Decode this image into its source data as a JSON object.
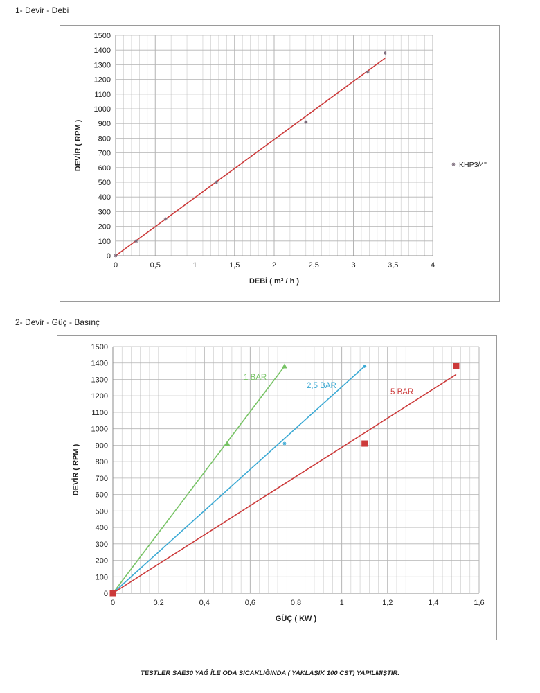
{
  "sections": {
    "chart1_title": "1- Devir - Debi",
    "chart2_title": "2- Devir - Güç - Basınç"
  },
  "footer": {
    "note": "TESTLER SAE30 YAĞ İLE ODA SICAKLIĞINDA ( YAKLAŞIK 100 CST) YAPILMIŞTIR."
  },
  "colors": {
    "grid": "#c8c8c8",
    "axis": "#8c8c8c",
    "khp_line": "#cc3a3a",
    "khp_marker": "#7a6a7a",
    "bar1": "#77c365",
    "bar25": "#3aa9d4",
    "bar5": "#cc3a3a"
  },
  "chart_data": [
    {
      "type": "scatter",
      "xlabel": "DEBİ ( m³ / h )",
      "ylabel": "DEVİR ( RPM )",
      "xlim": [
        0,
        4
      ],
      "ylim": [
        0,
        1500
      ],
      "x_ticks": [
        "0",
        "0,5",
        "1",
        "1,5",
        "2",
        "2,5",
        "3",
        "3,5",
        "4"
      ],
      "y_ticks": [
        "0",
        "100",
        "200",
        "300",
        "400",
        "500",
        "600",
        "700",
        "800",
        "900",
        "1000",
        "1100",
        "1200",
        "1300",
        "1400",
        "1500"
      ],
      "grid": true,
      "legend": "right",
      "series": [
        {
          "name": "KHP3/4\"",
          "marker": "star",
          "points": [
            [
              0,
              0
            ],
            [
              0.26,
              100
            ],
            [
              0.63,
              250
            ],
            [
              1.27,
              500
            ],
            [
              2.4,
              910
            ],
            [
              3.18,
              1250
            ],
            [
              3.4,
              1380
            ]
          ],
          "trendline": [
            [
              0,
              0
            ],
            [
              3.4,
              1345
            ]
          ]
        }
      ]
    },
    {
      "type": "scatter",
      "xlabel": "GÜÇ ( KW )",
      "ylabel": "DEVİR ( RPM )",
      "xlim": [
        0,
        1.6
      ],
      "ylim": [
        0,
        1500
      ],
      "x_ticks": [
        "0",
        "0,2",
        "0,4",
        "0,6",
        "0,8",
        "1",
        "1,2",
        "1,4",
        "1,6"
      ],
      "y_ticks": [
        "0",
        "100",
        "200",
        "300",
        "400",
        "500",
        "600",
        "700",
        "800",
        "900",
        "1000",
        "1100",
        "1200",
        "1300",
        "1400",
        "1500"
      ],
      "grid": true,
      "series": [
        {
          "name": "1 BAR",
          "color_key": "bar1",
          "marker": "triangle",
          "points": [
            [
              0,
              0
            ],
            [
              0.5,
              910
            ],
            [
              0.75,
              1380
            ]
          ],
          "trendline": [
            [
              0,
              0
            ],
            [
              0.75,
              1380
            ]
          ]
        },
        {
          "name": "2,5 BAR",
          "color_key": "bar25",
          "marker": "star",
          "points": [
            [
              0,
              0
            ],
            [
              0.75,
              910
            ],
            [
              1.1,
              1380
            ]
          ],
          "trendline": [
            [
              0,
              0
            ],
            [
              1.1,
              1380
            ]
          ]
        },
        {
          "name": "5 BAR",
          "color_key": "bar5",
          "marker": "square",
          "points": [
            [
              0,
              0
            ],
            [
              1.1,
              910
            ],
            [
              1.5,
              1380
            ]
          ],
          "trendline": [
            [
              0,
              0
            ],
            [
              1.5,
              1330
            ]
          ]
        }
      ]
    }
  ]
}
